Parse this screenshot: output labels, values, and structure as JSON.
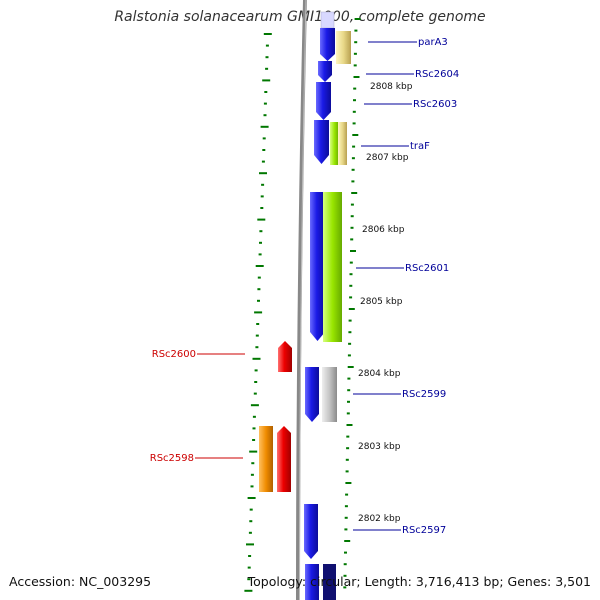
{
  "title": "Ralstonia solanacearum GMI1000, complete genome",
  "footer": {
    "accession": "Accession: NC_003295",
    "summary": "Topology: circular; Length: 3,716,413 bp; Genes: 3,501"
  },
  "colors": {
    "forward_cds": "#1a1ae6",
    "reverse_cds": "#e60000",
    "reverse_other": "#f08c00",
    "cog_green": "#99e600",
    "cog_tan": "#e0d080",
    "cog_gray": "#bbbbbb",
    "backbone": "#888888",
    "ticks": "#007700",
    "label_forward": "#000099",
    "label_reverse": "#cc0000"
  },
  "kbp_labels": [
    {
      "kbp": 2808,
      "text": "2808 kbp"
    },
    {
      "kbp": 2807,
      "text": "2807 kbp"
    },
    {
      "kbp": 2806,
      "text": "2806 kbp"
    },
    {
      "kbp": 2805,
      "text": "2805 kbp"
    },
    {
      "kbp": 2804,
      "text": "2804 kbp"
    },
    {
      "kbp": 2803,
      "text": "2803 kbp"
    },
    {
      "kbp": 2802,
      "text": "2802 kbp"
    }
  ],
  "gene_labels": [
    {
      "name": "parA3",
      "strand": "forward"
    },
    {
      "name": "RSc2604",
      "strand": "forward"
    },
    {
      "name": "RSc2603",
      "strand": "forward"
    },
    {
      "name": "traF",
      "strand": "forward"
    },
    {
      "name": "RSc2601",
      "strand": "forward"
    },
    {
      "name": "RSc2600",
      "strand": "reverse"
    },
    {
      "name": "RSc2599",
      "strand": "forward"
    },
    {
      "name": "RSc2598",
      "strand": "reverse"
    },
    {
      "name": "RSc2597",
      "strand": "forward"
    }
  ]
}
